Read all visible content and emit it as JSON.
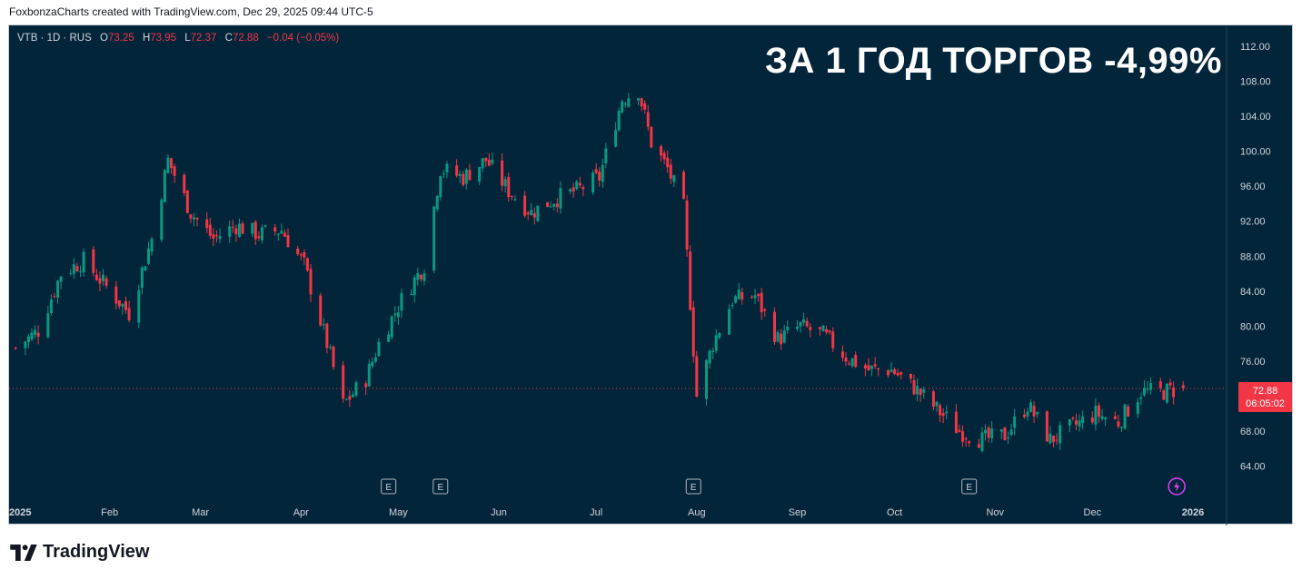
{
  "caption": "FoxbonzaCharts created with TradingView.com, Dec 29, 2025 09:44 UTC-5",
  "legend": {
    "symbol": "VTB · 1D · RUS",
    "open_label": "O",
    "open": "73.25",
    "high_label": "H",
    "high": "73.95",
    "low_label": "L",
    "low": "72.37",
    "close_label": "C",
    "close": "72.88",
    "change": "−0.04 (−0.05%)"
  },
  "headline": "ЗА 1 ГОД ТОРГОВ -4,99%",
  "price_tag": {
    "price": "72.88",
    "countdown": "06:05:02"
  },
  "footer": {
    "brand": "TradingView"
  },
  "colors": {
    "background": "#03253a",
    "up": "#089981",
    "down": "#f23645",
    "text": "#d1d4dc"
  },
  "chart_data": {
    "type": "candlestick",
    "symbol": "VTB",
    "interval": "1D",
    "exchange": "RUS",
    "y_ticks": [
      "112.00",
      "108.00",
      "104.00",
      "100.00",
      "96.00",
      "92.00",
      "88.00",
      "84.00",
      "80.00",
      "76.00",
      "72.00",
      "68.00",
      "64.00"
    ],
    "ylim": [
      62.0,
      113.5
    ],
    "x_labels": [
      "2025",
      "Feb",
      "Mar",
      "Apr",
      "May",
      "Jun",
      "Jul",
      "Aug",
      "Sep",
      "Oct",
      "Nov",
      "Dec",
      "2026"
    ],
    "last_price": 72.88,
    "earnings_markers": [
      "Apr",
      "May",
      "Aug",
      "Oct"
    ],
    "dividend_marker": "Dec",
    "close_path": [
      {
        "date": "2025-01-03",
        "close": 77.5
      },
      {
        "date": "2025-01-10",
        "close": 79.5
      },
      {
        "date": "2025-01-17",
        "close": 86.0
      },
      {
        "date": "2025-01-24",
        "close": 87.5
      },
      {
        "date": "2025-01-31",
        "close": 84.5
      },
      {
        "date": "2025-02-07",
        "close": 81.5
      },
      {
        "date": "2025-02-14",
        "close": 90.0
      },
      {
        "date": "2025-02-19",
        "close": 99.0
      },
      {
        "date": "2025-02-26",
        "close": 93.0
      },
      {
        "date": "2025-03-05",
        "close": 90.0
      },
      {
        "date": "2025-03-12",
        "close": 91.5
      },
      {
        "date": "2025-03-19",
        "close": 90.5
      },
      {
        "date": "2025-03-26",
        "close": 91.0
      },
      {
        "date": "2025-04-02",
        "close": 87.0
      },
      {
        "date": "2025-04-09",
        "close": 78.0
      },
      {
        "date": "2025-04-14",
        "close": 71.0
      },
      {
        "date": "2025-04-21",
        "close": 74.0
      },
      {
        "date": "2025-04-25",
        "close": 78.0
      },
      {
        "date": "2025-05-02",
        "close": 83.0
      },
      {
        "date": "2025-05-09",
        "close": 87.0
      },
      {
        "date": "2025-05-14",
        "close": 98.0
      },
      {
        "date": "2025-05-21",
        "close": 97.0
      },
      {
        "date": "2025-05-28",
        "close": 99.0
      },
      {
        "date": "2025-06-04",
        "close": 95.5
      },
      {
        "date": "2025-06-11",
        "close": 93.0
      },
      {
        "date": "2025-06-18",
        "close": 94.5
      },
      {
        "date": "2025-06-25",
        "close": 95.5
      },
      {
        "date": "2025-07-02",
        "close": 97.0
      },
      {
        "date": "2025-07-09",
        "close": 106.0
      },
      {
        "date": "2025-07-14",
        "close": 107.0
      },
      {
        "date": "2025-07-18",
        "close": 101.0
      },
      {
        "date": "2025-07-23",
        "close": 98.0
      },
      {
        "date": "2025-07-28",
        "close": 93.5
      },
      {
        "date": "2025-08-01",
        "close": 72.0
      },
      {
        "date": "2025-08-06",
        "close": 78.0
      },
      {
        "date": "2025-08-12",
        "close": 83.0
      },
      {
        "date": "2025-08-19",
        "close": 83.5
      },
      {
        "date": "2025-08-26",
        "close": 78.5
      },
      {
        "date": "2025-09-02",
        "close": 80.0
      },
      {
        "date": "2025-09-09",
        "close": 79.0
      },
      {
        "date": "2025-09-16",
        "close": 76.5
      },
      {
        "date": "2025-09-23",
        "close": 75.0
      },
      {
        "date": "2025-09-30",
        "close": 75.0
      },
      {
        "date": "2025-10-07",
        "close": 73.0
      },
      {
        "date": "2025-10-14",
        "close": 70.5
      },
      {
        "date": "2025-10-21",
        "close": 68.0
      },
      {
        "date": "2025-10-28",
        "close": 67.0
      },
      {
        "date": "2025-11-04",
        "close": 67.5
      },
      {
        "date": "2025-11-11",
        "close": 71.0
      },
      {
        "date": "2025-11-18",
        "close": 67.0
      },
      {
        "date": "2025-11-25",
        "close": 68.5
      },
      {
        "date": "2025-12-02",
        "close": 70.0
      },
      {
        "date": "2025-12-09",
        "close": 69.0
      },
      {
        "date": "2025-12-16",
        "close": 72.5
      },
      {
        "date": "2025-12-23",
        "close": 72.5
      },
      {
        "date": "2025-12-29",
        "close": 72.88
      }
    ]
  }
}
